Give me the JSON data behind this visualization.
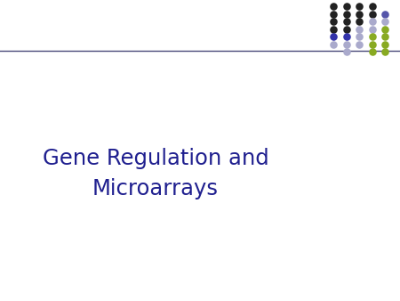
{
  "title_line1": "Gene Regulation and",
  "title_line2": "Microarrays",
  "title_color": "#1f1f8f",
  "bg_color": "#ffffff",
  "header_line_color": "#4a4a7a",
  "title_fontsize": 17.5,
  "dot_grid": {
    "rows": 7,
    "cols": 5,
    "dot_size": 38,
    "colors": [
      [
        "#222222",
        "#222222",
        "#222222",
        "#222222",
        "none"
      ],
      [
        "#222222",
        "#222222",
        "#222222",
        "#222222",
        "#5555aa"
      ],
      [
        "#222222",
        "#222222",
        "#222222",
        "#aaaacc",
        "#aaaacc"
      ],
      [
        "#222222",
        "#222222",
        "#aaaacc",
        "#aaaacc",
        "#88aa22"
      ],
      [
        "#3333aa",
        "#3333aa",
        "#aaaacc",
        "#88aa22",
        "#88aa22"
      ],
      [
        "#aaaacc",
        "#aaaacc",
        "#aaaacc",
        "#88aa22",
        "#88aa22"
      ],
      [
        "none",
        "#aaaacc",
        "none",
        "#88aa22",
        "#88aa22"
      ]
    ]
  }
}
